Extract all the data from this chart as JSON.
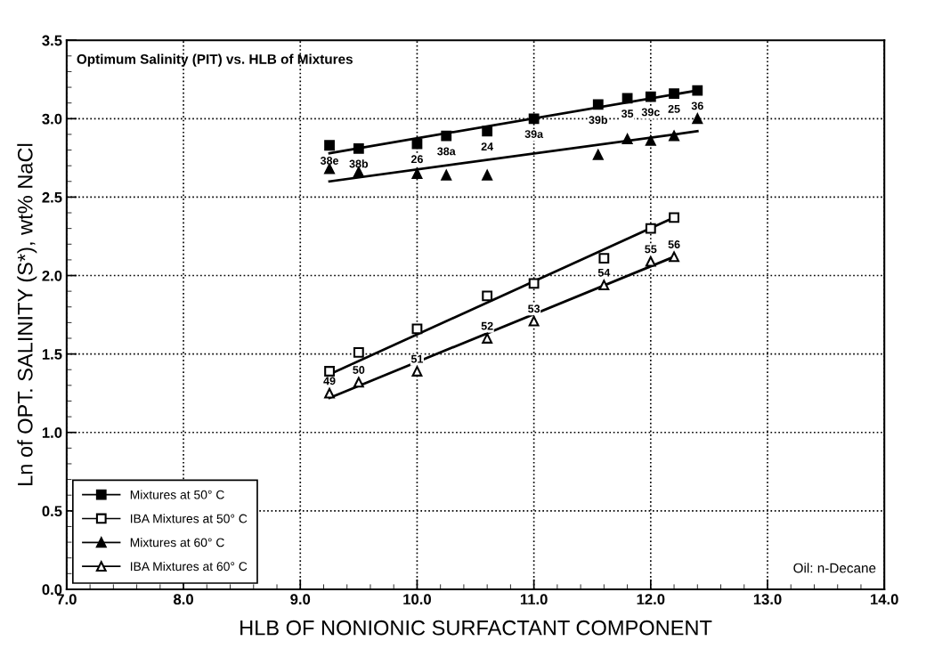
{
  "chart_data": {
    "type": "scatter",
    "title": "Optimum Salinity (PIT) vs. HLB of Mixtures",
    "xlabel": "HLB OF NONIONIC SURFACTANT COMPONENT",
    "ylabel": "Ln of OPT. SALINITY (S*), wt% NaCl",
    "series": [
      {
        "name": "Mixtures at 50° C",
        "color": "#000000",
        "marker": "square",
        "x": [
          9.25,
          9.5,
          10.0,
          10.25,
          10.6,
          11.0,
          11.55,
          11.8,
          12.0,
          12.2,
          12.4
        ],
        "values": [
          2.83,
          2.81,
          2.84,
          2.89,
          2.92,
          3.0,
          3.09,
          3.13,
          3.14,
          3.16,
          3.18
        ]
      },
      {
        "name": "IBA Mixtures at 50° C",
        "color": "#ffffff",
        "marker": "square",
        "x": [
          9.25,
          9.5,
          10.0,
          10.6,
          11.0,
          11.6,
          12.0,
          12.2
        ],
        "values": [
          1.39,
          1.51,
          1.66,
          1.87,
          1.95,
          2.11,
          2.3,
          2.37
        ]
      },
      {
        "name": "Mixtures at 60° C",
        "color": "#000000",
        "marker": "triangle",
        "x": [
          9.25,
          9.5,
          10.0,
          10.25,
          10.6,
          11.55,
          11.8,
          12.0,
          12.2,
          12.4
        ],
        "values": [
          2.68,
          2.66,
          2.65,
          2.64,
          2.64,
          2.77,
          2.87,
          2.86,
          2.89,
          3.0
        ]
      },
      {
        "name": "IBA Mixtures at 60° C",
        "color": "#ffffff",
        "marker": "triangle",
        "x": [
          9.25,
          9.5,
          10.0,
          10.6,
          11.0,
          11.6,
          12.0,
          12.2
        ],
        "values": [
          1.25,
          1.32,
          1.39,
          1.6,
          1.71,
          1.94,
          2.09,
          2.12
        ]
      },
      {
        "type": "line",
        "color": "#000000",
        "x": [
          9.25,
          12.4
        ],
        "values": [
          2.78,
          3.18
        ]
      },
      {
        "type": "line",
        "color": "#000000",
        "x": [
          9.25,
          12.2
        ],
        "values": [
          1.37,
          2.37
        ]
      },
      {
        "type": "line",
        "color": "#000000",
        "x": [
          9.25,
          12.4
        ],
        "values": [
          2.6,
          2.92
        ]
      },
      {
        "type": "line",
        "color": "#000000",
        "x": [
          9.25,
          12.2
        ],
        "values": [
          1.22,
          2.12
        ]
      }
    ],
    "annotations": [
      {
        "text": "38e",
        "x": 9.25,
        "y": 2.83
      },
      {
        "text": "38b",
        "x": 9.5,
        "y": 2.81
      },
      {
        "text": "26",
        "x": 10.0,
        "y": 2.84
      },
      {
        "text": "38a",
        "x": 10.25,
        "y": 2.89
      },
      {
        "text": "24",
        "x": 10.6,
        "y": 2.92
      },
      {
        "text": "39a",
        "x": 11.0,
        "y": 3.0
      },
      {
        "text": "39b",
        "x": 11.55,
        "y": 3.09
      },
      {
        "text": "35",
        "x": 11.8,
        "y": 3.13
      },
      {
        "text": "39c",
        "x": 12.0,
        "y": 3.14
      },
      {
        "text": "25",
        "x": 12.2,
        "y": 3.16
      },
      {
        "text": "36",
        "x": 12.4,
        "y": 3.18
      },
      {
        "text": "49",
        "x": 9.25,
        "y": 1.25
      },
      {
        "text": "50",
        "x": 9.5,
        "y": 1.32
      },
      {
        "text": "51",
        "x": 10.0,
        "y": 1.39
      },
      {
        "text": "52",
        "x": 10.6,
        "y": 1.6
      },
      {
        "text": "53",
        "x": 11.0,
        "y": 1.71
      },
      {
        "text": "54",
        "x": 11.6,
        "y": 1.94
      },
      {
        "text": "55",
        "x": 12.0,
        "y": 2.09
      },
      {
        "text": "56",
        "x": 12.2,
        "y": 2.12
      },
      "Oil: n-Decane"
    ],
    "xlim": [
      7.0,
      14.0
    ],
    "xticks": [
      {
        "value": 7,
        "label": "7.0"
      },
      {
        "value": 8,
        "label": "8.0"
      },
      {
        "value": 9,
        "label": "9.0"
      },
      {
        "value": 10,
        "label": "10.0"
      },
      {
        "value": 11,
        "label": "11.0"
      },
      {
        "value": 12,
        "label": "12.0"
      },
      {
        "value": 13,
        "label": "13.0"
      },
      {
        "value": 14,
        "label": "14.0"
      }
    ],
    "ylim": [
      0.0,
      3.5
    ],
    "yticks": [
      {
        "value": 0,
        "label": "0.0"
      },
      0.5,
      {
        "value": 1,
        "label": "1.0"
      },
      1.5,
      {
        "value": 2,
        "label": "2.0"
      },
      2.5,
      {
        "value": 3,
        "label": "3.0"
      },
      3.5
    ],
    "grid": true,
    "legend": "bottom left"
  }
}
